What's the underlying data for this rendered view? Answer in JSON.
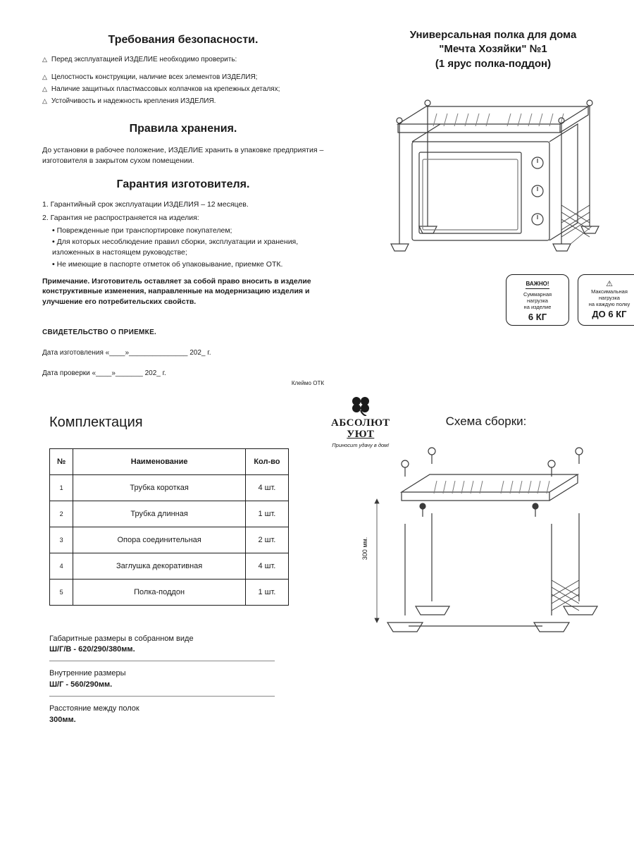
{
  "left": {
    "safety": {
      "title": "Требования безопасности.",
      "lead": "Перед эксплуатацией ИЗДЕЛИЕ необходимо проверить:",
      "items": [
        "Целостность конструкции, наличие всех элементов ИЗДЕЛИЯ;",
        "Наличие защитных пластмассовых колпачков на крепежных деталях;",
        "Устойчивость и надежность крепления ИЗДЕЛИЯ."
      ]
    },
    "storage": {
      "title": "Правила хранения.",
      "text": "До установки в рабочее положение, ИЗДЕЛИЕ хранить в упаковке предприятия – изготовителя в закрытом сухом помещении."
    },
    "warranty": {
      "title": "Гарантия изготовителя.",
      "n1": "1.  Гарантийный срок эксплуатации ИЗДЕЛИЯ – 12 месяцев.",
      "n2": "2. Гарантия не распространяется на изделия:",
      "subs": [
        "Поврежденные при транспортировке покупателем;",
        "Для которых несоблюдение правил сборки, эксплуатации и хранения, изложенных в настоящем руководстве;",
        "Не имеющие в паспорте отметок об упаковывание, приемке ОТК."
      ],
      "note": "Примечание. Изготовитель оставляет за собой право вносить в изделие конструктивные изменения, направленные на модернизацию изделия и улучшение его потребительских свойств."
    },
    "acceptance": {
      "title": "СВИДЕТЕЛЬСТВО О ПРИЕМКЕ.",
      "made": "Дата изготовления «____»_______________ 202_ г.",
      "checked": "Дата проверки «____»_______ 202_ г.",
      "stamp": "Клеймо ОТК"
    }
  },
  "right": {
    "product_title_l1": "Универсальная полка для дома",
    "product_title_l2": "\"Мечта Хозяйки\" №1",
    "product_title_l3": "(1 ярус полка-поддон)",
    "box1": {
      "hdr": "ВАЖНО!",
      "txt1": "Суммарная",
      "txt2": "нагрузка",
      "txt3": "на изделие",
      "val": "6 КГ"
    },
    "box2": {
      "txt1": "Максимальная",
      "txt2": "нагрузка",
      "txt3": "на каждую полку",
      "val": "ДО 6 КГ"
    },
    "brand": {
      "name1": "АБСОЛЮТ",
      "name2": "УЮТ",
      "sub": "Приносит удачу в дом!"
    }
  },
  "bottom": {
    "kompl_title": "Комплектация",
    "schema_title": "Схема сборки:",
    "table": {
      "h_num": "№",
      "h_name": "Наименование",
      "h_qty": "Кол-во",
      "rows": [
        {
          "n": "1",
          "name": "Трубка короткая",
          "qty": "4 шт."
        },
        {
          "n": "2",
          "name": "Трубка длинная",
          "qty": "1 шт."
        },
        {
          "n": "3",
          "name": "Опора соединительная",
          "qty": "2 шт."
        },
        {
          "n": "4",
          "name": "Заглушка декоративная",
          "qty": "4 шт."
        },
        {
          "n": "5",
          "name": "Полка-поддон",
          "qty": "1 шт."
        }
      ]
    },
    "dims": {
      "d1_lbl": "Габаритные размеры в собранном виде",
      "d1_val": "Ш/Г/В - 620/290/380мм.",
      "d2_lbl": "Внутренние размеры",
      "d2_val": "Ш/Г - 560/290мм.",
      "d3_lbl": "Расстояние между полок",
      "d3_val": "300мм."
    },
    "height_label": "300 мм."
  },
  "style": {
    "stroke": "#3a3a3a",
    "stroke_light": "#7a7a7a",
    "fill": "#ffffff"
  }
}
